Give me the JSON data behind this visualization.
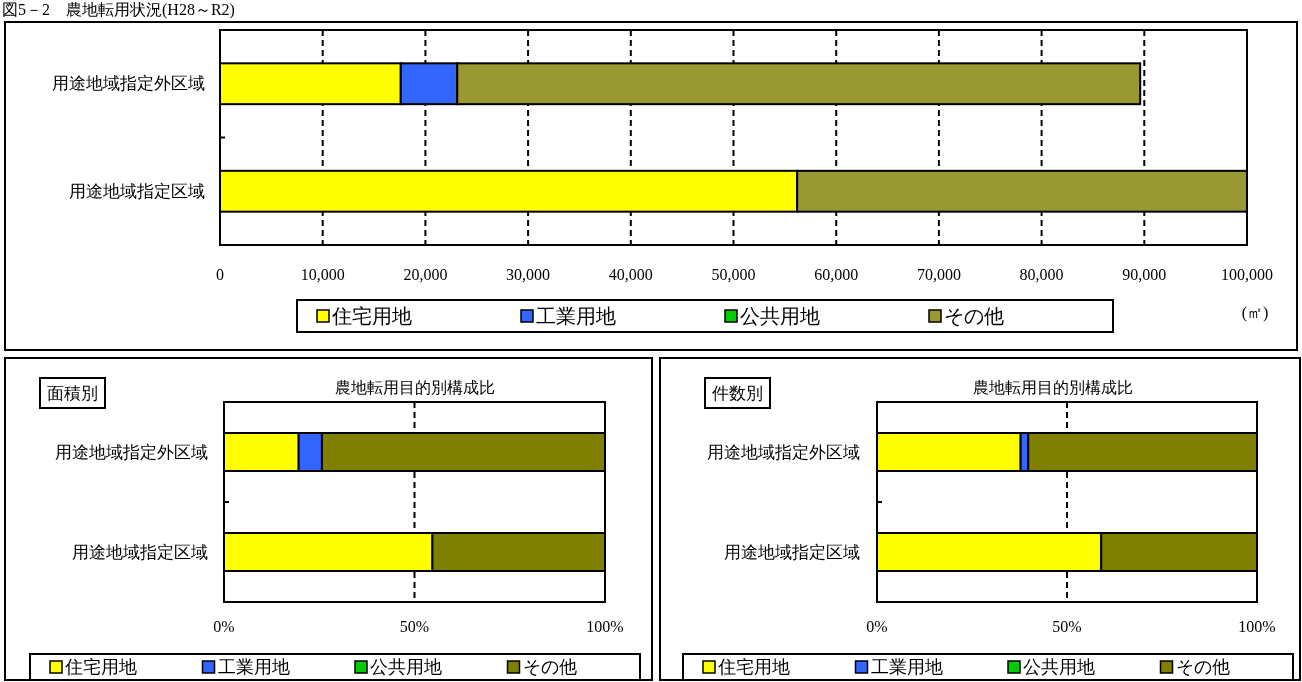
{
  "chart_data": [
    {
      "type": "bar",
      "orientation": "horizontal",
      "stacked": true,
      "title": "図5－2　農地転用状況(H28～R2)",
      "xlabel": "(㎡)",
      "categories": [
        "用途地域指定外区域",
        "用途地域指定区域"
      ],
      "series": [
        {
          "name": "住宅用地",
          "color": "#ffff00",
          "values": [
            17600,
            56200
          ]
        },
        {
          "name": "工業用地",
          "color": "#3366ff",
          "values": [
            5500,
            0
          ]
        },
        {
          "name": "公共用地",
          "color": "#00cc00",
          "values": [
            0,
            0
          ]
        },
        {
          "name": "その他",
          "color": "#999933",
          "values": [
            66500,
            43800
          ]
        }
      ],
      "xlim": [
        0,
        100000
      ],
      "xticks": [
        {
          "value": 0,
          "label": "0"
        },
        {
          "value": 10000,
          "label": "10,000"
        },
        {
          "value": 20000,
          "label": "20,000"
        },
        {
          "value": 30000,
          "label": "30,000"
        },
        {
          "value": 40000,
          "label": "40,000"
        },
        {
          "value": 50000,
          "label": "50,000"
        },
        {
          "value": 60000,
          "label": "60,000"
        },
        {
          "value": 70000,
          "label": "70,000"
        },
        {
          "value": 80000,
          "label": "80,000"
        },
        {
          "value": 90000,
          "label": "90,000"
        },
        {
          "value": 100000,
          "label": "100,000"
        }
      ],
      "grid": "x",
      "legend": "bottom"
    },
    {
      "type": "bar",
      "orientation": "horizontal",
      "stacked": true,
      "title": "農地転用目的別構成比",
      "subtitle": "面積別",
      "categories": [
        "用途地域指定外区域",
        "用途地域指定区域"
      ],
      "series": [
        {
          "name": "住宅用地",
          "color": "#ffff00",
          "values": [
            19.6,
            54.7
          ]
        },
        {
          "name": "工業用地",
          "color": "#3366ff",
          "values": [
            6.1,
            0
          ]
        },
        {
          "name": "公共用地",
          "color": "#00cc00",
          "values": [
            0,
            0
          ]
        },
        {
          "name": "その他",
          "color": "#808000",
          "values": [
            74.3,
            45.3
          ]
        }
      ],
      "xlim": [
        0,
        100
      ],
      "xticks": [
        {
          "value": 0,
          "label": "0%"
        },
        {
          "value": 50,
          "label": "50%"
        },
        {
          "value": 100,
          "label": "100%"
        }
      ],
      "grid": "x",
      "legend": "bottom"
    },
    {
      "type": "bar",
      "orientation": "horizontal",
      "stacked": true,
      "title": "農地転用目的別構成比",
      "subtitle": "件数別",
      "categories": [
        "用途地域指定外区域",
        "用途地域指定区域"
      ],
      "series": [
        {
          "name": "住宅用地",
          "color": "#ffff00",
          "values": [
            37.8,
            59.0
          ]
        },
        {
          "name": "工業用地",
          "color": "#3366ff",
          "values": [
            2.0,
            0
          ]
        },
        {
          "name": "公共用地",
          "color": "#00cc00",
          "values": [
            0,
            0
          ]
        },
        {
          "name": "その他",
          "color": "#808000",
          "values": [
            60.2,
            41.0
          ]
        }
      ],
      "xlim": [
        0,
        100
      ],
      "xticks": [
        {
          "value": 0,
          "label": "0%"
        },
        {
          "value": 50,
          "label": "50%"
        },
        {
          "value": 100,
          "label": "100%"
        }
      ],
      "grid": "x",
      "legend": "bottom"
    }
  ]
}
